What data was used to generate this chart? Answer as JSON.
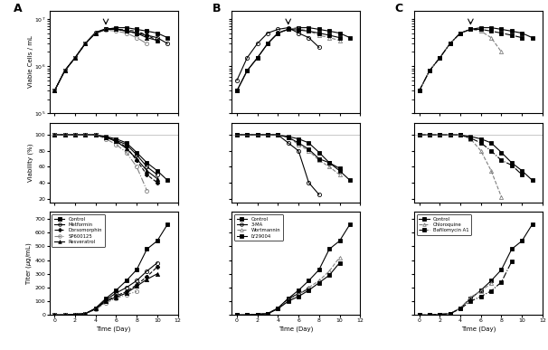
{
  "panels": [
    "A",
    "B",
    "C"
  ],
  "time_days": [
    0,
    1,
    2,
    3,
    4,
    5,
    6,
    7,
    8,
    9,
    10,
    11
  ],
  "A": {
    "legend_labels": [
      "Control",
      "Metformin",
      "Dorsomorphin",
      "SP600125",
      "Resveratrol"
    ],
    "markers": [
      "s",
      "o",
      "P",
      "o",
      "^"
    ],
    "fillstyles": [
      "full",
      "none",
      "full",
      "none",
      "full"
    ],
    "colors": [
      "black",
      "black",
      "black",
      "gray",
      "black"
    ],
    "linestyles": [
      "-",
      "-",
      "--",
      "-.",
      "-"
    ],
    "arrow_day": 5,
    "vcells": [
      [
        300000.0,
        800000.0,
        1500000.0,
        3000000.0,
        5000000.0,
        6000000.0,
        6500000.0,
        6500000.0,
        6000000.0,
        5500000.0,
        5000000.0,
        4000000.0
      ],
      [
        300000.0,
        800000.0,
        1500000.0,
        3000000.0,
        5200000.0,
        6200000.0,
        6200000.0,
        5500000.0,
        5000000.0,
        4500000.0,
        4000000.0,
        3000000.0
      ],
      [
        300000.0,
        800000.0,
        1500000.0,
        3000000.0,
        5000000.0,
        6000000.0,
        6000000.0,
        5800000.0,
        5500000.0,
        4500000.0,
        3500000.0,
        null
      ],
      [
        300000.0,
        800000.0,
        1500000.0,
        3000000.0,
        5000000.0,
        5800000.0,
        5500000.0,
        5000000.0,
        4000000.0,
        3000000.0,
        null,
        null
      ],
      [
        300000.0,
        800000.0,
        1500000.0,
        3000000.0,
        5000000.0,
        6000000.0,
        6000000.0,
        5500000.0,
        5000000.0,
        4000000.0,
        3500000.0,
        null
      ]
    ],
    "viability": [
      [
        100,
        100,
        100,
        100,
        100,
        98,
        95,
        90,
        78,
        65,
        55,
        43
      ],
      [
        100,
        100,
        100,
        100,
        100,
        97,
        93,
        88,
        75,
        60,
        50,
        null
      ],
      [
        100,
        100,
        100,
        100,
        100,
        97,
        92,
        85,
        68,
        50,
        40,
        null
      ],
      [
        100,
        100,
        100,
        100,
        100,
        95,
        88,
        78,
        60,
        30,
        null,
        null
      ],
      [
        100,
        100,
        100,
        100,
        100,
        97,
        92,
        83,
        70,
        55,
        45,
        null
      ]
    ],
    "titer": [
      [
        0,
        0,
        5,
        10,
        50,
        120,
        180,
        250,
        330,
        480,
        540,
        660
      ],
      [
        0,
        0,
        5,
        10,
        45,
        110,
        160,
        200,
        250,
        320,
        380,
        null
      ],
      [
        0,
        0,
        5,
        10,
        45,
        100,
        140,
        170,
        220,
        280,
        350,
        null
      ],
      [
        0,
        0,
        5,
        10,
        40,
        90,
        120,
        150,
        170,
        null,
        null,
        null
      ],
      [
        0,
        0,
        5,
        10,
        45,
        100,
        130,
        160,
        210,
        260,
        300,
        null
      ]
    ]
  },
  "B": {
    "legend_labels": [
      "Control",
      "3-MA",
      "Wortmannin",
      "LY29004"
    ],
    "markers": [
      "s",
      "o",
      "^",
      "s"
    ],
    "fillstyles": [
      "full",
      "none",
      "none",
      "full"
    ],
    "colors": [
      "black",
      "black",
      "gray",
      "black"
    ],
    "linestyles": [
      "-",
      "-",
      "--",
      "-"
    ],
    "arrow_day": 5,
    "vcells": [
      [
        300000.0,
        800000.0,
        1500000.0,
        3000000.0,
        5000000.0,
        6000000.0,
        6500000.0,
        6500000.0,
        6000000.0,
        5500000.0,
        5000000.0,
        4000000.0
      ],
      [
        500000.0,
        1500000.0,
        3000000.0,
        5000000.0,
        6000000.0,
        6500000.0,
        5000000.0,
        4000000.0,
        2500000.0,
        null,
        null,
        null
      ],
      [
        300000.0,
        800000.0,
        1500000.0,
        3000000.0,
        5000000.0,
        6200000.0,
        6200000.0,
        5500000.0,
        4500000.0,
        4000000.0,
        3500000.0,
        null
      ],
      [
        300000.0,
        800000.0,
        1500000.0,
        3000000.0,
        5000000.0,
        6000000.0,
        5800000.0,
        5500000.0,
        5000000.0,
        4500000.0,
        4000000.0,
        null
      ]
    ],
    "viability": [
      [
        100,
        100,
        100,
        100,
        100,
        98,
        95,
        90,
        78,
        65,
        55,
        43
      ],
      [
        100,
        100,
        100,
        100,
        100,
        90,
        80,
        40,
        25,
        null,
        null,
        null
      ],
      [
        100,
        100,
        100,
        100,
        100,
        97,
        88,
        80,
        68,
        60,
        50,
        null
      ],
      [
        100,
        100,
        100,
        100,
        100,
        97,
        90,
        82,
        70,
        65,
        58,
        null
      ]
    ],
    "titer": [
      [
        0,
        0,
        5,
        10,
        50,
        120,
        180,
        250,
        330,
        480,
        540,
        660
      ],
      [
        0,
        0,
        5,
        10,
        50,
        120,
        155,
        190,
        null,
        null,
        null,
        null
      ],
      [
        0,
        0,
        5,
        10,
        45,
        110,
        150,
        200,
        250,
        320,
        420,
        null
      ],
      [
        0,
        0,
        5,
        10,
        45,
        100,
        135,
        180,
        235,
        290,
        380,
        null
      ]
    ]
  },
  "C": {
    "legend_labels": [
      "Control",
      "Chloroquine",
      "Bafilomycin A1"
    ],
    "markers": [
      "s",
      "^",
      "s"
    ],
    "fillstyles": [
      "full",
      "none",
      "full"
    ],
    "colors": [
      "black",
      "gray",
      "black"
    ],
    "linestyles": [
      "-",
      "--",
      "-."
    ],
    "arrow_day": 5,
    "vcells": [
      [
        300000.0,
        800000.0,
        1500000.0,
        3000000.0,
        5000000.0,
        6000000.0,
        6500000.0,
        6500000.0,
        6000000.0,
        5500000.0,
        5000000.0,
        4000000.0
      ],
      [
        300000.0,
        800000.0,
        1500000.0,
        3000000.0,
        5000000.0,
        6000000.0,
        5500000.0,
        4000000.0,
        2000000.0,
        null,
        null,
        null
      ],
      [
        300000.0,
        800000.0,
        1500000.0,
        3000000.0,
        5000000.0,
        6000000.0,
        6000000.0,
        5500000.0,
        5000000.0,
        4500000.0,
        4000000.0,
        null
      ]
    ],
    "viability": [
      [
        100,
        100,
        100,
        100,
        100,
        98,
        95,
        90,
        78,
        65,
        55,
        43
      ],
      [
        100,
        100,
        100,
        100,
        100,
        95,
        80,
        55,
        22,
        null,
        null,
        null
      ],
      [
        100,
        100,
        100,
        100,
        100,
        96,
        90,
        80,
        68,
        62,
        50,
        null
      ]
    ],
    "titer": [
      [
        0,
        0,
        5,
        10,
        50,
        120,
        180,
        250,
        330,
        480,
        540,
        660
      ],
      [
        0,
        0,
        5,
        10,
        50,
        130,
        175,
        230,
        null,
        null,
        null,
        null
      ],
      [
        0,
        0,
        5,
        10,
        45,
        100,
        135,
        175,
        240,
        390,
        null,
        null
      ]
    ]
  }
}
